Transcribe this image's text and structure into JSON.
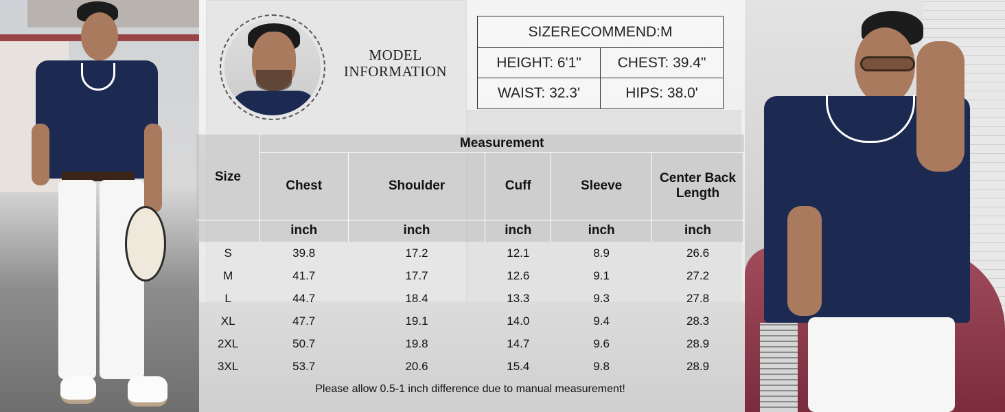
{
  "model": {
    "title_line1": "MODEL",
    "title_line2": "INFORMATION"
  },
  "info": {
    "size_recommend": "SIZERECOMMEND:M",
    "height": "HEIGHT: 6'1\"",
    "chest": "CHEST: 39.4\"",
    "waist": "WAIST: 32.3'",
    "hips": "HIPS: 38.0'"
  },
  "table": {
    "group_header": "Measurement",
    "size_header": "Size",
    "columns": [
      "Chest",
      "Shoulder",
      "Cuff",
      "Sleeve",
      "Center Back Length"
    ],
    "unit": "inch",
    "rows": [
      [
        "S",
        "39.8",
        "17.2",
        "12.1",
        "8.9",
        "26.6"
      ],
      [
        "M",
        "41.7",
        "17.7",
        "12.6",
        "9.1",
        "27.2"
      ],
      [
        "L",
        "44.7",
        "18.4",
        "13.3",
        "9.3",
        "27.8"
      ],
      [
        "XL",
        "47.7",
        "19.1",
        "14.0",
        "9.4",
        "28.3"
      ],
      [
        "2XL",
        "50.7",
        "19.8",
        "14.7",
        "9.6",
        "28.9"
      ],
      [
        "3XL",
        "53.7",
        "20.6",
        "15.4",
        "9.8",
        "28.9"
      ]
    ]
  },
  "note": "Please allow 0.5-1 inch difference due to manual measurement!",
  "colors": {
    "shirt": "#1c2a52",
    "trim": "#ffffff",
    "pants": "#f6f6f6"
  }
}
